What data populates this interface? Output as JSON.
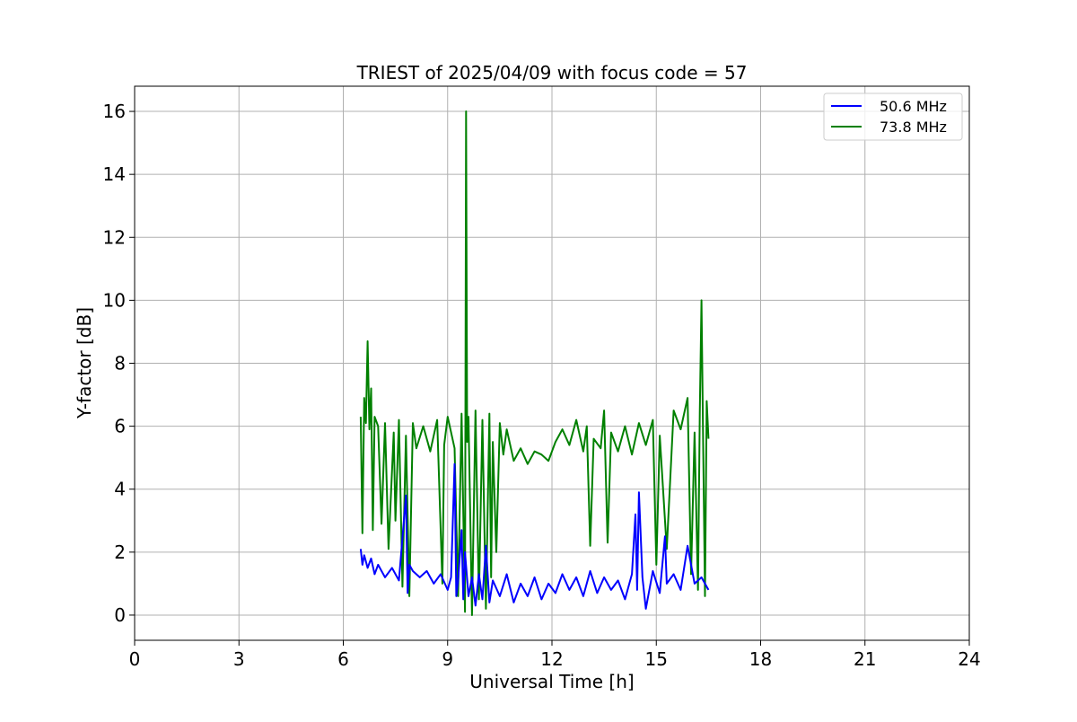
{
  "chart_data": {
    "type": "line",
    "title": "TRIEST of 2025/04/09 with focus code = 57",
    "xlabel": "Universal Time [h]",
    "ylabel": "Y-factor [dB]",
    "xlim": [
      0,
      24
    ],
    "ylim": [
      -0.8,
      16.8
    ],
    "xticks": [
      0,
      3,
      6,
      9,
      12,
      15,
      18,
      21,
      24
    ],
    "yticks": [
      0,
      2,
      4,
      6,
      8,
      10,
      12,
      14,
      16
    ],
    "grid": true,
    "legend_position": "top-right",
    "series": [
      {
        "name": "50.6 MHz",
        "color": "#0000ff",
        "x": [
          6.5,
          6.55,
          6.6,
          6.7,
          6.8,
          6.9,
          7.0,
          7.2,
          7.4,
          7.6,
          7.8,
          7.85,
          7.9,
          8.0,
          8.2,
          8.4,
          8.6,
          8.8,
          9.0,
          9.1,
          9.2,
          9.25,
          9.3,
          9.4,
          9.45,
          9.5,
          9.6,
          9.7,
          9.8,
          9.9,
          10.0,
          10.1,
          10.2,
          10.3,
          10.5,
          10.7,
          10.9,
          11.1,
          11.3,
          11.5,
          11.7,
          11.9,
          12.1,
          12.3,
          12.5,
          12.7,
          12.9,
          13.1,
          13.3,
          13.5,
          13.7,
          13.9,
          14.1,
          14.3,
          14.4,
          14.45,
          14.5,
          14.6,
          14.7,
          14.9,
          15.1,
          15.25,
          15.3,
          15.5,
          15.7,
          15.9,
          16.1,
          16.3,
          16.5
        ],
        "y": [
          2.1,
          1.6,
          1.9,
          1.5,
          1.8,
          1.3,
          1.6,
          1.2,
          1.5,
          1.1,
          3.8,
          0.7,
          1.6,
          1.4,
          1.2,
          1.4,
          1.0,
          1.3,
          0.8,
          1.2,
          4.8,
          0.6,
          1.1,
          2.7,
          0.5,
          2.0,
          0.6,
          1.2,
          0.3,
          1.3,
          0.5,
          2.2,
          0.4,
          1.1,
          0.6,
          1.3,
          0.4,
          1.0,
          0.6,
          1.2,
          0.5,
          1.0,
          0.7,
          1.3,
          0.8,
          1.2,
          0.6,
          1.4,
          0.7,
          1.2,
          0.8,
          1.1,
          0.5,
          1.3,
          3.2,
          0.8,
          3.9,
          1.2,
          0.2,
          1.4,
          0.7,
          2.5,
          1.0,
          1.3,
          0.8,
          2.2,
          1.0,
          1.2,
          0.8
        ]
      },
      {
        "name": "73.8 MHz",
        "color": "#008000",
        "x": [
          6.5,
          6.55,
          6.6,
          6.65,
          6.7,
          6.75,
          6.8,
          6.85,
          6.9,
          7.0,
          7.1,
          7.2,
          7.3,
          7.45,
          7.5,
          7.6,
          7.7,
          7.8,
          7.9,
          8.0,
          8.1,
          8.3,
          8.5,
          8.7,
          8.85,
          8.9,
          9.0,
          9.2,
          9.3,
          9.4,
          9.5,
          9.53,
          9.56,
          9.6,
          9.7,
          9.8,
          9.9,
          10.0,
          10.1,
          10.2,
          10.25,
          10.3,
          10.4,
          10.5,
          10.6,
          10.7,
          10.9,
          11.1,
          11.3,
          11.5,
          11.7,
          11.9,
          12.1,
          12.3,
          12.5,
          12.7,
          12.9,
          13.0,
          13.1,
          13.2,
          13.4,
          13.5,
          13.6,
          13.7,
          13.9,
          14.1,
          14.3,
          14.5,
          14.7,
          14.9,
          15.0,
          15.1,
          15.3,
          15.5,
          15.7,
          15.9,
          16.0,
          16.1,
          16.2,
          16.25,
          16.3,
          16.35,
          16.4,
          16.45,
          16.5
        ],
        "y": [
          6.3,
          2.6,
          6.9,
          6.1,
          8.7,
          5.9,
          7.2,
          2.7,
          6.3,
          6.0,
          2.9,
          6.1,
          2.1,
          5.8,
          3.0,
          6.2,
          0.9,
          5.7,
          0.6,
          6.1,
          5.3,
          6.0,
          5.2,
          6.2,
          1.0,
          5.4,
          6.3,
          5.3,
          0.6,
          6.4,
          0.1,
          16.0,
          5.5,
          6.3,
          0.0,
          6.5,
          0.5,
          6.2,
          0.2,
          6.4,
          1.2,
          5.5,
          2.0,
          6.1,
          5.1,
          5.9,
          4.9,
          5.3,
          4.8,
          5.2,
          5.1,
          4.9,
          5.5,
          5.9,
          5.4,
          6.2,
          5.2,
          6.0,
          2.2,
          5.6,
          5.3,
          6.5,
          2.3,
          5.8,
          5.2,
          6.0,
          5.1,
          6.1,
          5.4,
          6.2,
          1.6,
          5.7,
          2.1,
          6.5,
          5.9,
          6.9,
          1.3,
          5.8,
          0.8,
          6.4,
          10.0,
          5.1,
          0.6,
          6.8,
          5.6
        ]
      }
    ]
  }
}
